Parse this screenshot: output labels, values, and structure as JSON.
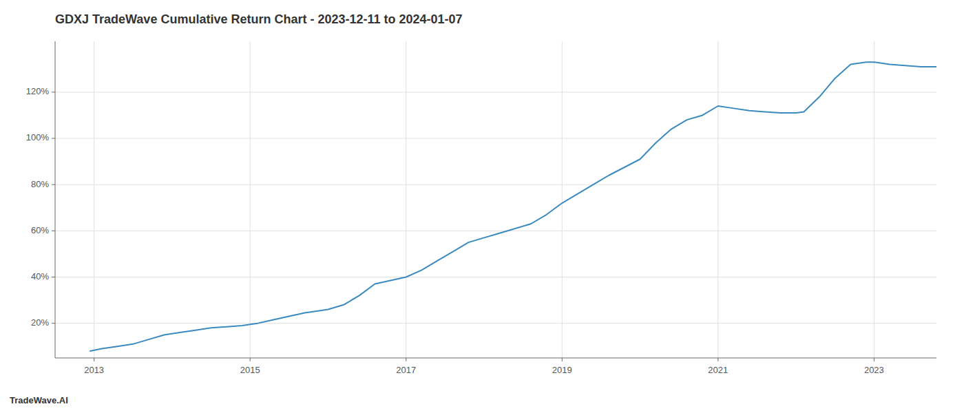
{
  "chart_data": {
    "type": "line",
    "title": "GDXJ TradeWave Cumulative Return Chart - 2023-12-11 to 2024-01-07",
    "annotations": [
      "TradeWave.AI"
    ],
    "color": "#3a8abf",
    "grid": true,
    "xlim": [
      2012.5,
      2023.8
    ],
    "ylim": [
      0.05,
      1.42
    ],
    "xticks": [
      2013,
      2015,
      2017,
      2019,
      2021,
      2023
    ],
    "yticks": [
      {
        "value": 0.2,
        "label": "20%"
      },
      {
        "value": 0.4,
        "label": "40%"
      },
      {
        "value": 0.6,
        "label": "60%"
      },
      {
        "value": 0.8,
        "label": "80%"
      },
      {
        "value": 1.0,
        "label": "100%"
      },
      {
        "value": 1.2,
        "label": "120%"
      }
    ],
    "x": [
      2012.95,
      2013.1,
      2013.3,
      2013.5,
      2013.7,
      2013.9,
      2014.1,
      2014.3,
      2014.5,
      2014.7,
      2014.9,
      2015.0,
      2015.1,
      2015.3,
      2015.5,
      2015.7,
      2015.9,
      2016.0,
      2016.2,
      2016.4,
      2016.6,
      2016.8,
      2017.0,
      2017.2,
      2017.4,
      2017.6,
      2017.8,
      2018.0,
      2018.2,
      2018.4,
      2018.6,
      2018.8,
      2019.0,
      2019.2,
      2019.4,
      2019.6,
      2019.8,
      2020.0,
      2020.2,
      2020.4,
      2020.6,
      2020.8,
      2021.0,
      2021.2,
      2021.4,
      2021.6,
      2021.8,
      2022.0,
      2022.1,
      2022.3,
      2022.5,
      2022.7,
      2022.9,
      2023.0,
      2023.2,
      2023.4,
      2023.6,
      2023.8
    ],
    "values": [
      0.08,
      0.09,
      0.1,
      0.11,
      0.13,
      0.15,
      0.16,
      0.17,
      0.18,
      0.185,
      0.19,
      0.195,
      0.2,
      0.215,
      0.23,
      0.245,
      0.255,
      0.26,
      0.28,
      0.32,
      0.37,
      0.385,
      0.4,
      0.43,
      0.47,
      0.51,
      0.55,
      0.57,
      0.59,
      0.61,
      0.63,
      0.67,
      0.72,
      0.76,
      0.8,
      0.84,
      0.875,
      0.91,
      0.98,
      1.04,
      1.08,
      1.1,
      1.14,
      1.13,
      1.12,
      1.115,
      1.11,
      1.11,
      1.115,
      1.18,
      1.26,
      1.32,
      1.33,
      1.33,
      1.32,
      1.315,
      1.31,
      1.31
    ]
  }
}
